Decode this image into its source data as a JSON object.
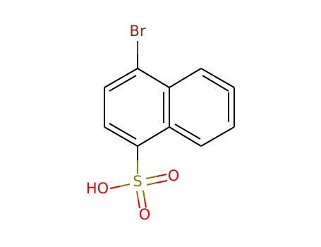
{
  "atoms": [
    {
      "label": "Br"
    },
    {
      "label": "S"
    },
    {
      "label": "O"
    },
    {
      "label": "O"
    },
    {
      "label": "HO"
    }
  ]
}
